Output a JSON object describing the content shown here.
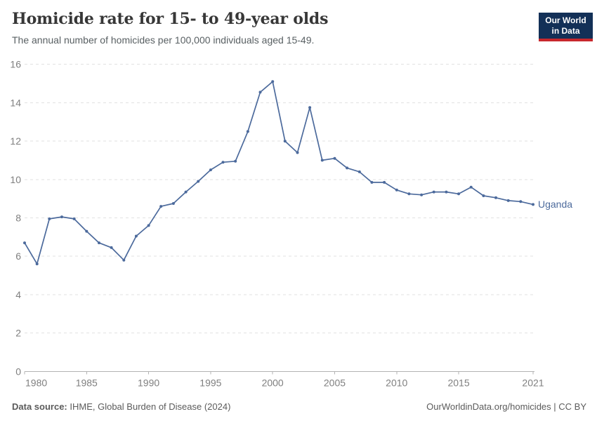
{
  "header": {
    "title": "Homicide rate for 15- to 49-year olds",
    "subtitle": "The annual number of homicides per 100,000 individuals aged 15-49.",
    "logo": {
      "line1": "Our World",
      "line2": "in Data",
      "bg_color": "#133057",
      "accent_color": "#c8282d"
    }
  },
  "chart_data": {
    "type": "line",
    "title": "Homicide rate for 15- to 49-year olds",
    "xlabel": "",
    "ylabel": "",
    "xlim": [
      1980,
      2021
    ],
    "ylim": [
      0,
      16
    ],
    "grid": "horizontal-dashed",
    "legend_position": "end-of-line-label",
    "xticks": [
      1980,
      1985,
      1990,
      1995,
      2000,
      2005,
      2010,
      2015,
      2021
    ],
    "yticks": [
      0,
      2,
      4,
      6,
      8,
      10,
      12,
      14,
      16
    ],
    "x": [
      1980,
      1981,
      1982,
      1983,
      1984,
      1985,
      1986,
      1987,
      1988,
      1989,
      1990,
      1991,
      1992,
      1993,
      1994,
      1995,
      1996,
      1997,
      1998,
      1999,
      2000,
      2001,
      2002,
      2003,
      2004,
      2005,
      2006,
      2007,
      2008,
      2009,
      2010,
      2011,
      2012,
      2013,
      2014,
      2015,
      2016,
      2017,
      2018,
      2019,
      2020,
      2021
    ],
    "series": [
      {
        "name": "Uganda",
        "color": "#4C6A9C",
        "values": [
          6.7,
          5.6,
          7.95,
          8.05,
          7.95,
          7.3,
          6.7,
          6.45,
          5.8,
          7.05,
          7.6,
          8.6,
          8.75,
          9.35,
          9.9,
          10.5,
          10.9,
          10.95,
          12.5,
          14.55,
          15.1,
          12.0,
          11.4,
          13.75,
          11.0,
          11.1,
          10.6,
          10.4,
          9.85,
          9.85,
          9.45,
          9.25,
          9.2,
          9.35,
          9.35,
          9.25,
          9.6,
          9.15,
          9.05,
          8.9,
          8.85,
          8.7
        ]
      }
    ]
  },
  "footer": {
    "source_label": "Data source:",
    "source_text": "IHME, Global Burden of Disease (2024)",
    "credit": "OurWorldinData.org/homicides | CC BY"
  },
  "colors": {
    "grid": "#e2e2e2",
    "axis": "#b3b3b3",
    "tick_label": "#7f7f7f",
    "series_label": "#4C6A9C"
  }
}
